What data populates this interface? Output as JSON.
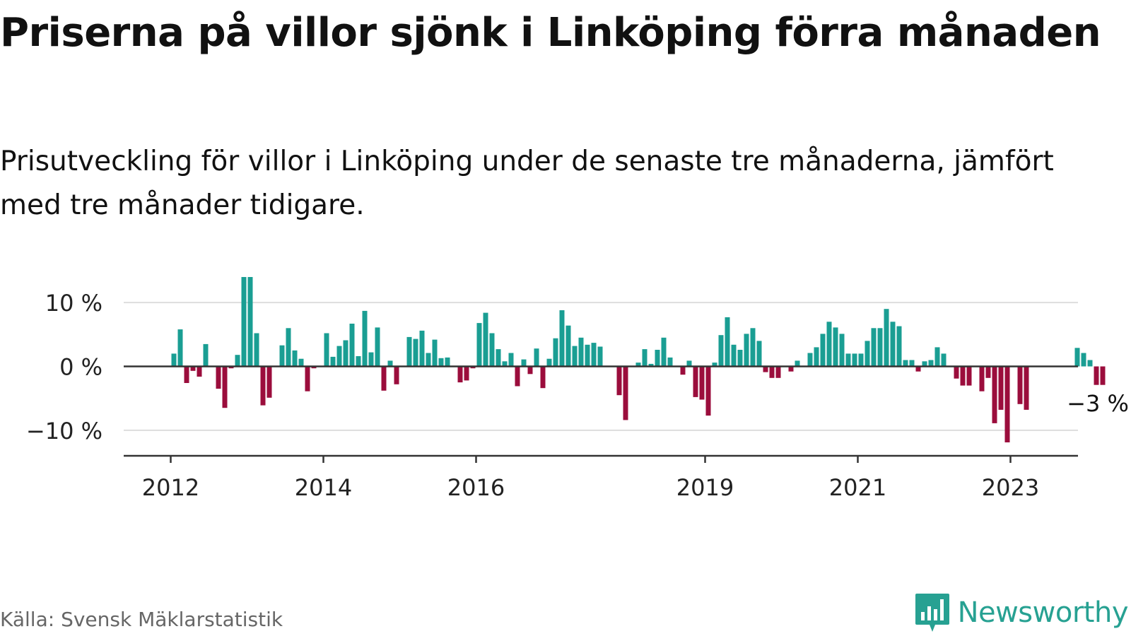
{
  "title": "Priserna på villor sjönk i Linköping förra månaden",
  "subtitle": "Prisutveckling för villor i Linköping under de senaste tre månaderna, jämfört med tre månader tidigare.",
  "source": "Källa: Svensk Mäklarstatistik",
  "brand": {
    "name": "Newsworthy",
    "icon": "newsworthy-logo-icon"
  },
  "colors": {
    "positive": "#1a9e93",
    "negative": "#9b0d3c",
    "grid": "#dddddd",
    "axis": "#333333"
  },
  "chart_data": {
    "type": "bar",
    "x_start": "2012-01",
    "frequency": "monthly",
    "ylim": [
      -14,
      14
    ],
    "yticks": [
      {
        "value": 10,
        "label": "10 %"
      },
      {
        "value": 0,
        "label": "0 %"
      },
      {
        "value": -10,
        "label": "−10 %"
      }
    ],
    "xticks": [
      {
        "date": "2012-01",
        "label": "2012"
      },
      {
        "date": "2014-01",
        "label": "2014"
      },
      {
        "date": "2016-01",
        "label": "2016"
      },
      {
        "date": "2019-01",
        "label": "2019"
      },
      {
        "date": "2021-01",
        "label": "2021"
      },
      {
        "date": "2023-01",
        "label": "2023"
      }
    ],
    "grid": true,
    "annotation": {
      "text": "−3 %",
      "date": "2024-02"
    },
    "values": [
      2,
      5.8,
      -2.6,
      -0.7,
      -1.6,
      3.5,
      null,
      -3.5,
      -6.5,
      -0.3,
      1.8,
      14,
      14,
      5.2,
      -6.1,
      -4.9,
      null,
      3.3,
      6,
      2.5,
      1.2,
      -3.9,
      -0.3,
      null,
      5.2,
      1.5,
      3.2,
      4.1,
      6.7,
      1.6,
      8.7,
      2.2,
      6.1,
      -3.8,
      0.9,
      -2.8,
      null,
      4.6,
      4.3,
      5.6,
      2.1,
      4.2,
      1.3,
      1.4,
      null,
      -2.5,
      -2.2,
      -0.3,
      6.8,
      8.4,
      5.2,
      2.7,
      0.8,
      2.1,
      -3.1,
      1.1,
      -1.2,
      2.8,
      -3.4,
      1.2,
      4.4,
      8.8,
      6.4,
      3.2,
      4.5,
      3.4,
      3.7,
      3.1,
      null,
      null,
      -4.5,
      -8.4,
      null,
      0.6,
      2.7,
      0.4,
      2.6,
      4.5,
      1.4,
      null,
      -1.3,
      0.9,
      -4.8,
      -5.2,
      -7.7,
      0.6,
      4.9,
      7.7,
      3.4,
      2.6,
      5.1,
      6,
      4,
      -0.9,
      -1.8,
      -1.8,
      null,
      -0.8,
      0.9,
      null,
      2.1,
      3,
      5.1,
      7,
      6.1,
      5.1,
      2,
      2,
      2,
      4,
      6,
      6,
      9,
      7,
      6.3,
      1,
      1,
      -0.8,
      0.8,
      1,
      3,
      2,
      null,
      -1.9,
      -3,
      -3,
      null,
      -3.9,
      -1.8,
      -8.9,
      -6.8,
      -11.9,
      null,
      -5.9,
      -6.8,
      null,
      null,
      null,
      null,
      null,
      null,
      null,
      2.9,
      2.1,
      1,
      -2.9,
      -2.9
    ]
  }
}
